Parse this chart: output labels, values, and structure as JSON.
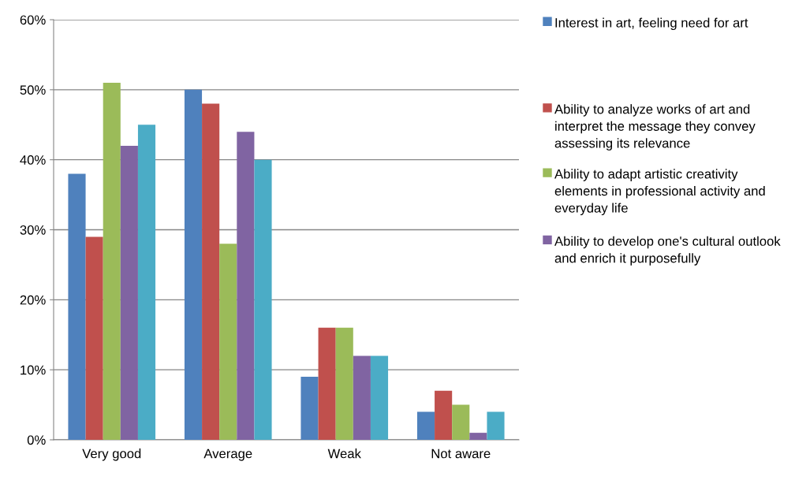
{
  "chart_data": {
    "type": "bar",
    "categories": [
      "Very good",
      "Average",
      "Weak",
      "Not aware"
    ],
    "series": [
      {
        "name": "Interest in art, feeling need for art",
        "color": "#4f81bd",
        "values": [
          38,
          50,
          9,
          4
        ]
      },
      {
        "name": "Ability to analyze works of art and interpret the message they convey assessing its relevance",
        "color": "#c0504d",
        "values": [
          29,
          48,
          16,
          7
        ]
      },
      {
        "name": "Ability to adapt artistic creativity elements in professional activity and everyday life",
        "color": "#9bbb59",
        "values": [
          51,
          28,
          16,
          5
        ]
      },
      {
        "name": "Ability to develop one's cultural outlook and enrich it purposefully",
        "color": "#8064a2",
        "values": [
          42,
          44,
          12,
          1
        ]
      },
      {
        "color": "#4bacc6",
        "values": [
          45,
          40,
          12,
          4
        ]
      }
    ],
    "ylim": [
      0,
      60
    ],
    "yticks": [
      {
        "value": 0,
        "label": "0%"
      },
      {
        "value": 10,
        "label": "10%"
      },
      {
        "value": 20,
        "label": "20%"
      },
      {
        "value": 30,
        "label": "30%"
      },
      {
        "value": 40,
        "label": "40%"
      },
      {
        "value": 50,
        "label": "50%"
      },
      {
        "value": 60,
        "label": "60%"
      }
    ],
    "grid": "y",
    "legend": "right"
  }
}
